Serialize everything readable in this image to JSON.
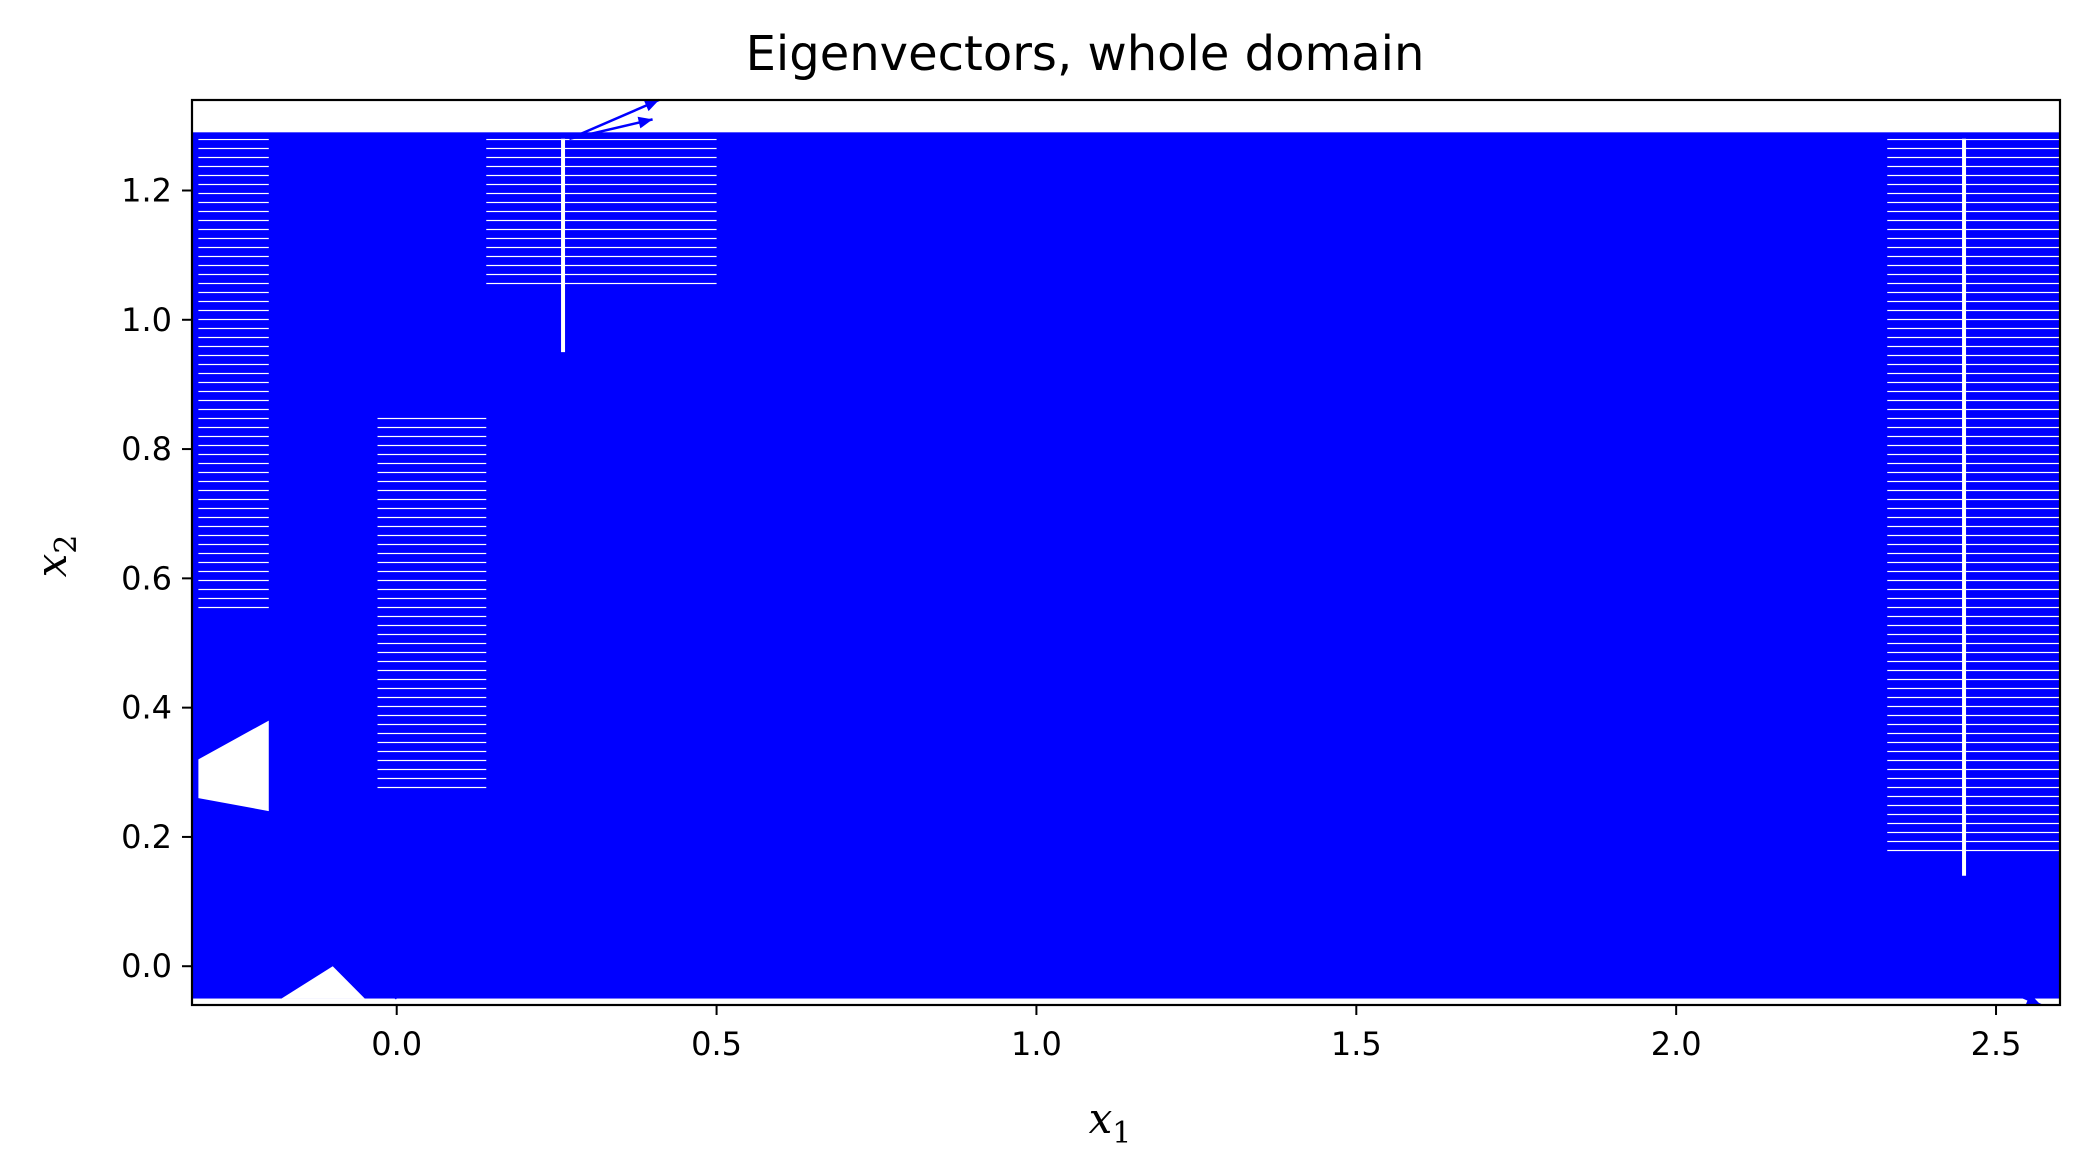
{
  "chart_data": {
    "type": "quiver",
    "title": "Eigenvectors, whole domain",
    "xlabel": {
      "symbol": "x",
      "subscript": "1"
    },
    "ylabel": {
      "symbol": "x",
      "subscript": "2"
    },
    "xlim": [
      -0.32,
      2.6
    ],
    "ylim": [
      -0.06,
      1.34
    ],
    "xticks": [
      0.0,
      0.5,
      1.0,
      1.5,
      2.0,
      2.5
    ],
    "xtick_labels": [
      "0.0",
      "0.5",
      "1.0",
      "1.5",
      "2.0",
      "2.5"
    ],
    "yticks": [
      0.0,
      0.2,
      0.4,
      0.6,
      0.8,
      1.0,
      1.2
    ],
    "ytick_labels": [
      "0.0",
      "0.2",
      "0.4",
      "0.6",
      "0.8",
      "1.0",
      "1.2"
    ],
    "grid": false,
    "legend": "none",
    "arrow_color": "#0000ff",
    "field_region": {
      "x_range": [
        -0.32,
        2.6
      ],
      "y_range": [
        -0.05,
        1.29
      ]
    },
    "white_gaps": [
      {
        "x": 2.45,
        "y_range": [
          0.14,
          1.28
        ]
      },
      {
        "x": 0.26,
        "y_range": [
          0.95,
          1.28
        ]
      }
    ],
    "outlier_arrows": [
      {
        "x": 0.27,
        "y": 1.28,
        "u": 0.14,
        "v": 0.06
      },
      {
        "x": 0.27,
        "y": 1.28,
        "u": 0.13,
        "v": 0.03
      },
      {
        "x": 0.0,
        "y": -0.05,
        "u": -0.08,
        "v": 0.06
      },
      {
        "x": 2.5,
        "y": -0.03,
        "u": 0.07,
        "v": -0.03
      }
    ]
  }
}
